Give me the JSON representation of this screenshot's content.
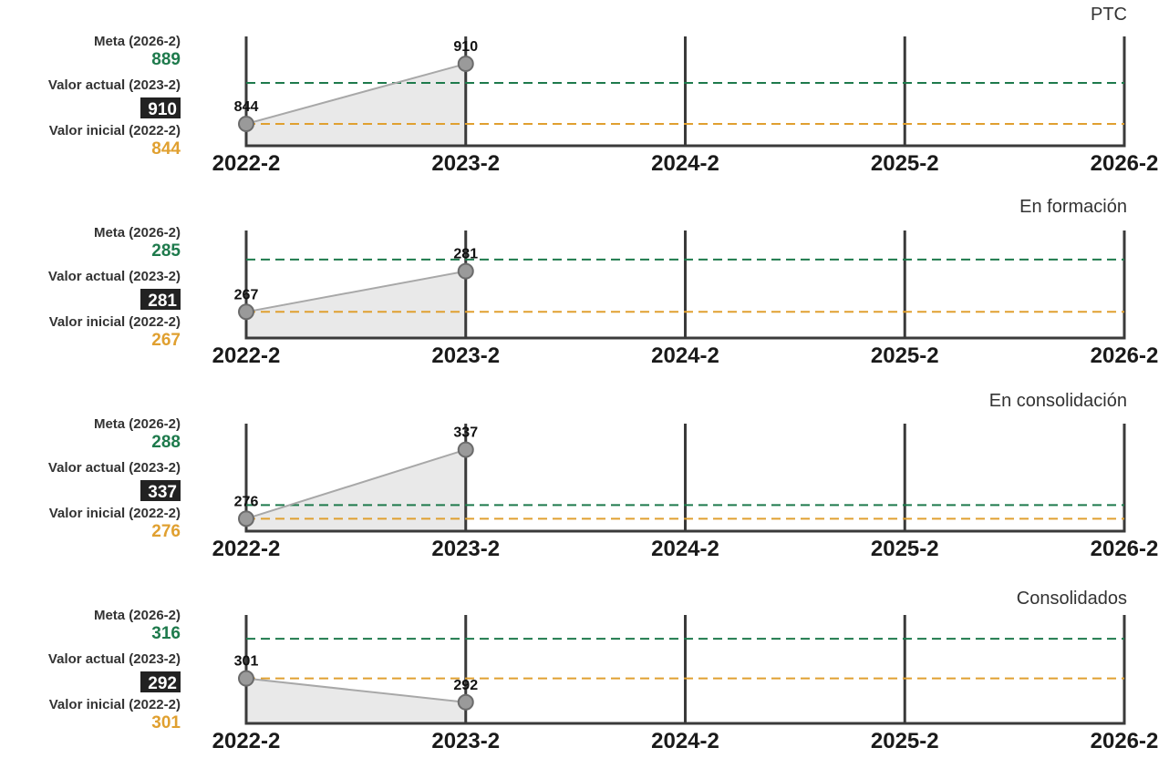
{
  "colors": {
    "meta": "#1e7a4c",
    "inicial": "#e0a030",
    "actual_bg": "#222222",
    "actual_fg": "#ffffff",
    "axis": "#3a3a3a",
    "area_fill": "#e9e9e9",
    "series_line": "#a8a8a8",
    "marker_fill": "#9a9a9a",
    "marker_stroke": "#6b6b6b",
    "label_text": "#333333"
  },
  "legend_labels": {
    "meta": "Meta (2026-2)",
    "actual": "Valor actual (2023-2)",
    "inicial": "Valor inicial (2022-2)"
  },
  "x_ticks": [
    "2022-2",
    "2023-2",
    "2024-2",
    "2025-2",
    "2026-2"
  ],
  "chart_data": [
    {
      "type": "line",
      "title": "PTC",
      "categories": [
        "2022-2",
        "2023-2"
      ],
      "values": [
        844,
        910
      ],
      "meta": 889,
      "valor_actual": 910,
      "valor_inicial": 844,
      "ylim": [
        820,
        940
      ]
    },
    {
      "type": "line",
      "title": "En formación",
      "categories": [
        "2022-2",
        "2023-2"
      ],
      "values": [
        267,
        281
      ],
      "meta": 285,
      "valor_actual": 281,
      "valor_inicial": 267,
      "ylim": [
        258,
        295
      ]
    },
    {
      "type": "line",
      "title": "En consolidación",
      "categories": [
        "2022-2",
        "2023-2"
      ],
      "values": [
        276,
        337
      ],
      "meta": 288,
      "valor_actual": 337,
      "valor_inicial": 276,
      "ylim": [
        265,
        360
      ]
    },
    {
      "type": "line",
      "title": "Consolidados",
      "categories": [
        "2022-2",
        "2023-2"
      ],
      "values": [
        301,
        292
      ],
      "meta": 316,
      "valor_actual": 292,
      "valor_inicial": 301,
      "ylim": [
        284,
        325
      ]
    }
  ]
}
